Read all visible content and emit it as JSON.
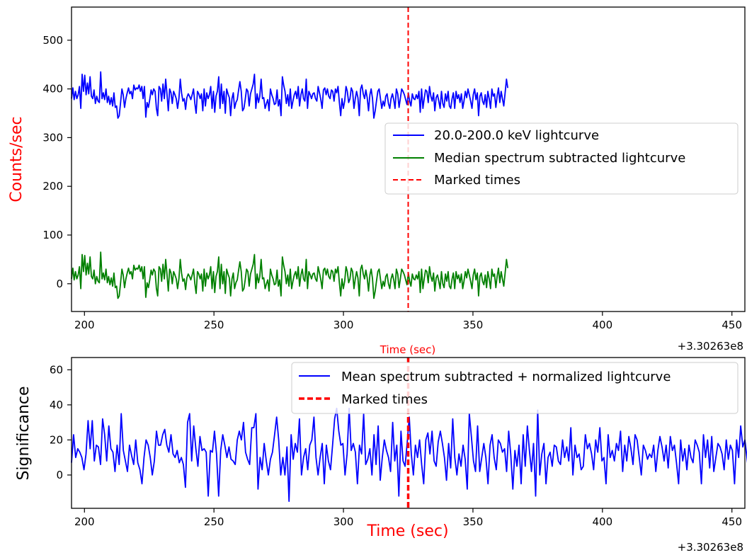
{
  "chart_data": [
    {
      "type": "line",
      "ylabel": "Counts/sec",
      "xlabel": "Time (sec)",
      "x_offset_label": "+3.30263e8",
      "xlim": [
        195,
        455
      ],
      "ylim": [
        -57,
        568
      ],
      "xticks": [
        200,
        250,
        300,
        350,
        400,
        450
      ],
      "yticks": [
        0,
        100,
        200,
        300,
        400,
        500
      ],
      "legend_position": "center-right",
      "grid": false,
      "colors": {
        "lightcurve": "#0000ff",
        "median": "#008000",
        "marked": "#ff0000",
        "ylabel": "#ff0000",
        "xlabel": "#ff0000"
      },
      "x_start": 195,
      "x_step": 0.512,
      "series": [
        {
          "name": "20.0-200.0 keV lightcurve",
          "values": [
            380,
            402,
            378,
            395,
            380,
            388,
            405,
            360,
            430,
            395,
            428,
            388,
            412,
            390,
            425,
            385,
            380,
            398,
            370,
            385,
            375,
            372,
            435,
            380,
            392,
            378,
            400,
            372,
            385,
            368,
            382,
            365,
            392,
            362,
            365,
            340,
            345,
            372,
            400,
            388,
            362,
            380,
            392,
            402,
            390,
            395,
            380,
            408,
            398,
            402,
            400,
            408,
            395,
            405,
            380,
            405,
            342,
            372,
            362,
            378,
            398,
            388,
            400,
            395,
            360,
            345,
            405,
            400,
            375,
            410,
            380,
            420,
            390,
            355,
            400,
            392,
            370,
            395,
            388,
            380,
            360,
            380,
            420,
            392,
            375,
            380,
            358,
            382,
            390,
            385,
            378,
            388,
            400,
            370,
            350,
            395,
            390,
            380,
            390,
            355,
            400,
            365,
            392,
            380,
            388,
            405,
            360,
            395,
            352,
            385,
            395,
            425,
            360,
            410,
            370,
            395,
            350,
            400,
            390,
            382,
            345,
            380,
            392,
            360,
            372,
            378,
            398,
            415,
            395,
            355,
            360,
            378,
            400,
            395,
            365,
            390,
            400,
            410,
            430,
            360,
            390,
            372,
            385,
            420,
            380,
            382,
            360,
            370,
            378,
            355,
            400,
            388,
            380,
            368,
            370,
            398,
            365,
            378,
            345,
            425,
            408,
            395,
            370,
            388,
            365,
            400,
            360,
            375,
            388,
            395,
            380,
            405,
            365,
            388,
            400,
            380,
            375,
            420,
            360,
            395,
            388,
            380,
            390,
            392,
            380,
            375,
            405,
            392,
            378,
            360,
            398,
            402,
            388,
            400,
            385,
            380,
            398,
            395,
            375,
            400,
            392,
            405,
            372,
            345,
            380,
            360,
            375,
            405,
            395,
            372,
            380,
            402,
            395,
            360,
            380,
            395,
            382,
            345,
            400,
            408,
            390,
            380,
            398,
            382,
            355,
            388,
            400,
            380,
            340,
            355,
            375,
            395,
            400,
            380,
            360,
            375,
            365,
            385,
            390,
            370,
            360,
            380,
            390,
            378,
            360,
            400,
            390,
            362,
            380,
            400,
            395,
            388,
            378,
            368,
            392,
            375,
            365,
            390,
            380,
            378,
            388,
            380,
            395,
            352,
            400,
            360,
            380,
            398,
            395,
            372,
            405,
            385,
            375,
            392,
            355,
            382,
            388,
            375,
            360,
            395,
            370,
            362,
            390,
            375,
            395,
            365,
            360,
            380,
            392,
            360,
            395,
            380,
            388,
            372,
            390,
            360,
            375,
            395,
            382,
            400,
            388,
            375,
            360,
            388,
            400,
            378,
            392,
            345,
            385,
            392,
            375,
            368,
            388,
            362,
            395,
            380,
            360,
            400,
            385,
            390,
            362,
            385,
            402,
            372,
            395,
            380,
            365,
            392,
            420,
            402
          ]
        },
        {
          "name": "Median spectrum subtracted lightcurve",
          "values": [
            10,
            32,
            8,
            25,
            10,
            18,
            35,
            -10,
            60,
            25,
            58,
            18,
            42,
            20,
            55,
            15,
            10,
            28,
            0,
            15,
            5,
            2,
            65,
            10,
            22,
            8,
            30,
            2,
            15,
            -2,
            12,
            -5,
            22,
            -8,
            -5,
            -30,
            -25,
            2,
            30,
            18,
            -8,
            10,
            22,
            32,
            20,
            25,
            10,
            38,
            28,
            32,
            30,
            38,
            25,
            35,
            10,
            35,
            -28,
            2,
            -8,
            8,
            28,
            18,
            30,
            25,
            -10,
            -25,
            35,
            30,
            5,
            40,
            10,
            50,
            20,
            -15,
            30,
            22,
            0,
            25,
            18,
            10,
            -10,
            10,
            50,
            22,
            5,
            10,
            -12,
            12,
            20,
            15,
            8,
            18,
            30,
            0,
            -20,
            25,
            20,
            10,
            20,
            -15,
            30,
            -5,
            22,
            10,
            18,
            35,
            -10,
            25,
            -18,
            15,
            25,
            55,
            -10,
            40,
            0,
            25,
            -20,
            30,
            20,
            12,
            -25,
            10,
            22,
            -10,
            2,
            8,
            28,
            45,
            25,
            -15,
            -10,
            8,
            30,
            25,
            -5,
            20,
            30,
            40,
            60,
            -10,
            20,
            2,
            15,
            50,
            10,
            12,
            -10,
            0,
            8,
            -15,
            30,
            18,
            10,
            -2,
            0,
            28,
            -5,
            8,
            -25,
            55,
            38,
            25,
            0,
            18,
            -5,
            30,
            -10,
            5,
            18,
            25,
            10,
            35,
            -5,
            18,
            30,
            10,
            5,
            50,
            -10,
            25,
            18,
            10,
            20,
            22,
            10,
            5,
            35,
            22,
            8,
            -10,
            28,
            32,
            18,
            30,
            15,
            10,
            28,
            25,
            5,
            30,
            22,
            35,
            2,
            -25,
            10,
            -10,
            5,
            35,
            25,
            2,
            10,
            32,
            25,
            -10,
            10,
            25,
            12,
            -25,
            30,
            38,
            20,
            10,
            28,
            12,
            -15,
            18,
            30,
            10,
            -30,
            -15,
            5,
            25,
            30,
            10,
            -10,
            5,
            -5,
            15,
            20,
            0,
            -10,
            10,
            20,
            8,
            -10,
            30,
            20,
            -8,
            10,
            30,
            25,
            18,
            8,
            -2,
            22,
            5,
            -5,
            20,
            10,
            8,
            18,
            10,
            25,
            -18,
            30,
            -10,
            10,
            28,
            25,
            2,
            35,
            15,
            5,
            22,
            -15,
            12,
            18,
            5,
            -10,
            25,
            0,
            -8,
            20,
            5,
            25,
            -5,
            -10,
            10,
            22,
            -10,
            25,
            10,
            18,
            2,
            20,
            -10,
            5,
            25,
            12,
            30,
            18,
            5,
            -10,
            18,
            30,
            8,
            22,
            -25,
            15,
            22,
            5,
            -2,
            18,
            -8,
            25,
            10,
            -10,
            30,
            15,
            20,
            -8,
            15,
            32,
            2,
            25,
            10,
            -5,
            22,
            50,
            32
          ]
        }
      ],
      "marked_times": [
        325
      ],
      "marked_times_label": "Marked times"
    },
    {
      "type": "line",
      "ylabel": "Significance",
      "xlabel": "Time (sec)",
      "x_offset_label": "+3.30263e8",
      "xlim": [
        195,
        455
      ],
      "ylim": [
        -19,
        67
      ],
      "xticks": [
        200,
        250,
        300,
        350,
        400,
        450
      ],
      "yticks": [
        0,
        20,
        40,
        60
      ],
      "legend_position": "top-right",
      "grid": false,
      "colors": {
        "lightcurve": "#0000ff",
        "marked": "#ff0000",
        "ylabel": "#000000",
        "xlabel": "#ff0000"
      },
      "x_start": 195,
      "x_step": 0.8,
      "series": [
        {
          "name": "Mean spectrum subtracted + normalized lightcurve",
          "values": [
            7,
            23,
            10,
            15,
            13,
            10,
            3,
            12,
            31,
            15,
            31,
            8,
            17,
            16,
            6,
            32,
            23,
            8,
            28,
            15,
            13,
            2,
            17,
            6,
            35,
            14,
            8,
            2,
            17,
            11,
            6,
            20,
            7,
            3,
            -5,
            10,
            20,
            17,
            10,
            0,
            8,
            25,
            17,
            17,
            23,
            26,
            17,
            13,
            23,
            12,
            10,
            14,
            7,
            10,
            6,
            -7,
            30,
            35,
            8,
            28,
            15,
            5,
            22,
            14,
            15,
            13,
            -12,
            14,
            13,
            25,
            12,
            -12,
            14,
            23,
            17,
            10,
            16,
            9,
            8,
            6,
            20,
            25,
            20,
            30,
            13,
            9,
            6,
            27,
            27,
            35,
            -8,
            10,
            3,
            18,
            8,
            0,
            9,
            13,
            23,
            33,
            20,
            0,
            10,
            0,
            16,
            -15,
            23,
            9,
            18,
            13,
            32,
            0,
            10,
            15,
            3,
            17,
            20,
            33,
            10,
            0,
            10,
            18,
            -5,
            17,
            8,
            3,
            17,
            32,
            38,
            25,
            17,
            18,
            0,
            12,
            38,
            14,
            18,
            13,
            -5,
            17,
            12,
            35,
            6,
            9,
            15,
            0,
            23,
            6,
            28,
            -3,
            10,
            20,
            14,
            10,
            2,
            30,
            8,
            17,
            -12,
            25,
            8,
            5,
            18,
            33,
            12,
            0,
            17,
            10,
            20,
            6,
            -5,
            20,
            24,
            12,
            25,
            8,
            5,
            19,
            25,
            18,
            10,
            -3,
            18,
            4,
            32,
            10,
            0,
            12,
            5,
            17,
            9,
            -8,
            35,
            22,
            8,
            2,
            28,
            2,
            10,
            18,
            10,
            -5,
            17,
            23,
            10,
            3,
            20,
            18,
            13,
            15,
            2,
            25,
            12,
            -8,
            14,
            5,
            17,
            -5,
            23,
            5,
            28,
            14,
            2,
            18,
            -12,
            37,
            0,
            12,
            18,
            -5,
            10,
            13,
            5,
            17,
            16,
            8,
            6,
            20,
            10,
            16,
            8,
            27,
            0,
            17,
            10,
            12,
            3,
            5,
            23,
            15,
            18,
            12,
            3,
            20,
            13,
            27,
            8,
            10,
            -5,
            23,
            10,
            14,
            8,
            18,
            14,
            25,
            2,
            17,
            8,
            22,
            15,
            6,
            23,
            20,
            10,
            0,
            17,
            14,
            9,
            12,
            10,
            17,
            2,
            14,
            22,
            16,
            8,
            17,
            4,
            22,
            14,
            17,
            7,
            -5,
            20,
            8,
            15,
            3,
            17,
            10,
            7,
            20,
            17,
            13,
            -5,
            23,
            10,
            20,
            4,
            22,
            2,
            10,
            18,
            16,
            12,
            3,
            20,
            9,
            17,
            14,
            -5,
            20,
            10,
            28,
            16,
            20,
            10,
            0,
            13,
            7,
            17,
            26,
            14,
            0,
            22,
            16,
            30,
            15
          ]
        }
      ],
      "marked_times": [
        325
      ],
      "marked_times_label": "Marked times"
    }
  ]
}
